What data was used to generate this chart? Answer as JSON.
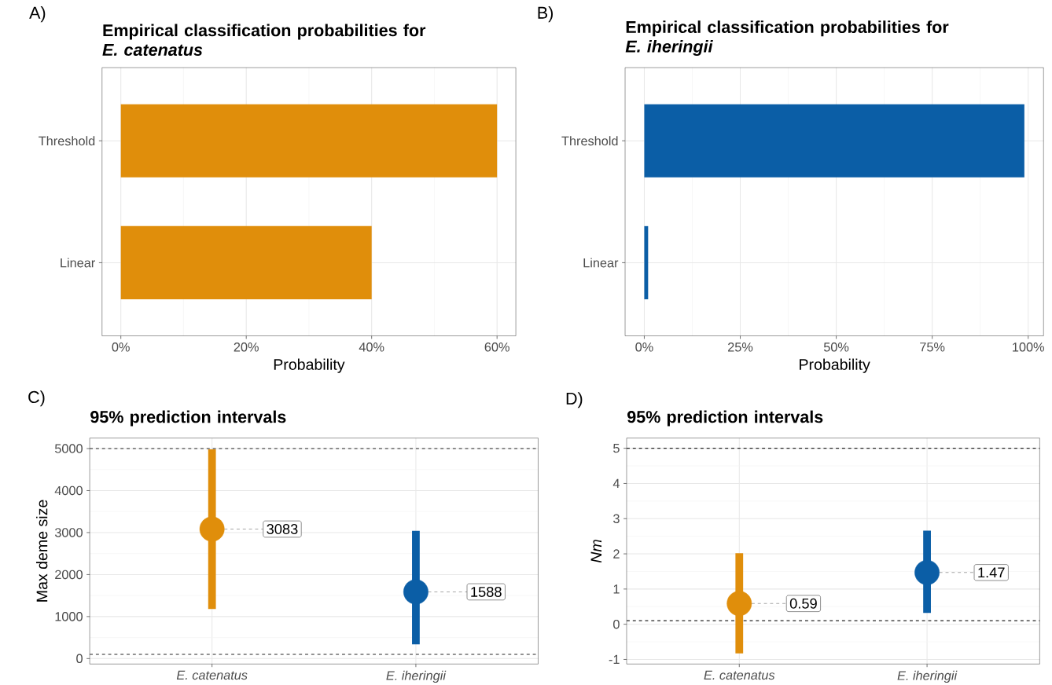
{
  "chart_data": [
    {
      "type": "bar",
      "orientation": "horizontal",
      "title": "Empirical classification probabilities for *E. catenatus*",
      "xlabel": "Probability",
      "categories": [
        "Threshold",
        "Linear"
      ],
      "values": [
        60,
        40
      ],
      "color": "#e08e0b",
      "xlim": [
        -3,
        63
      ],
      "xticks": [
        {
          "value": 0,
          "label": "0%"
        },
        {
          "value": 20,
          "label": "20%"
        },
        {
          "value": 40,
          "label": "40%"
        },
        {
          "value": 60,
          "label": "60%"
        }
      ],
      "grid": true,
      "annotations": [
        "A)"
      ]
    },
    {
      "type": "bar",
      "orientation": "horizontal",
      "title": "Empirical classification probabilities for *E. iheringii*",
      "xlabel": "Probability",
      "categories": [
        "Threshold",
        "Linear"
      ],
      "values": [
        99,
        1
      ],
      "color": "#0b5ea6",
      "xlim": [
        -5,
        104
      ],
      "xticks": [
        {
          "value": 0,
          "label": "0%"
        },
        {
          "value": 25,
          "label": "25%"
        },
        {
          "value": 50,
          "label": "50%"
        },
        {
          "value": 75,
          "label": "75%"
        },
        {
          "value": 100,
          "label": "100%"
        }
      ],
      "grid": true,
      "annotations": [
        "B)"
      ]
    },
    {
      "type": "scatter",
      "title": "95% prediction intervals",
      "ylabel": "Max deme size",
      "categories": [
        "E. catenatus",
        "E. iheringii"
      ],
      "values": [
        3083,
        1588
      ],
      "colors": [
        "#e08e0b",
        "#0b5ea6"
      ],
      "errors": [
        [
          1180,
          4980
        ],
        [
          340,
          3040
        ]
      ],
      "value_labels": [
        "3083",
        "1588"
      ],
      "ylim": [
        -130,
        5250
      ],
      "yticks": [
        0,
        1000,
        2000,
        3000,
        4000,
        5000
      ],
      "ref_lines": [
        {
          "axis": "y",
          "value": 5000,
          "line_style": "dashed"
        },
        {
          "axis": "y",
          "value": 100,
          "line_style": "dashed"
        }
      ],
      "grid": true,
      "marker": "circle",
      "annotations": [
        "C)"
      ]
    },
    {
      "type": "scatter",
      "title": "95% prediction intervals",
      "ylabel": "*Nm*",
      "categories": [
        "E. catenatus",
        "E. iheringii"
      ],
      "values": [
        0.59,
        1.47
      ],
      "colors": [
        "#e08e0b",
        "#0b5ea6"
      ],
      "errors": [
        [
          -0.83,
          2.02
        ],
        [
          0.32,
          2.66
        ]
      ],
      "value_labels": [
        "0.59",
        "1.47"
      ],
      "ylim": [
        -1.13,
        5.29
      ],
      "yticks": [
        -1,
        0,
        1,
        2,
        3,
        4,
        5
      ],
      "ref_lines": [
        {
          "axis": "y",
          "value": 5,
          "line_style": "dashed"
        },
        {
          "axis": "y",
          "value": 0.1,
          "line_style": "dashed"
        }
      ],
      "grid": true,
      "marker": "circle",
      "annotations": [
        "D)"
      ]
    }
  ]
}
